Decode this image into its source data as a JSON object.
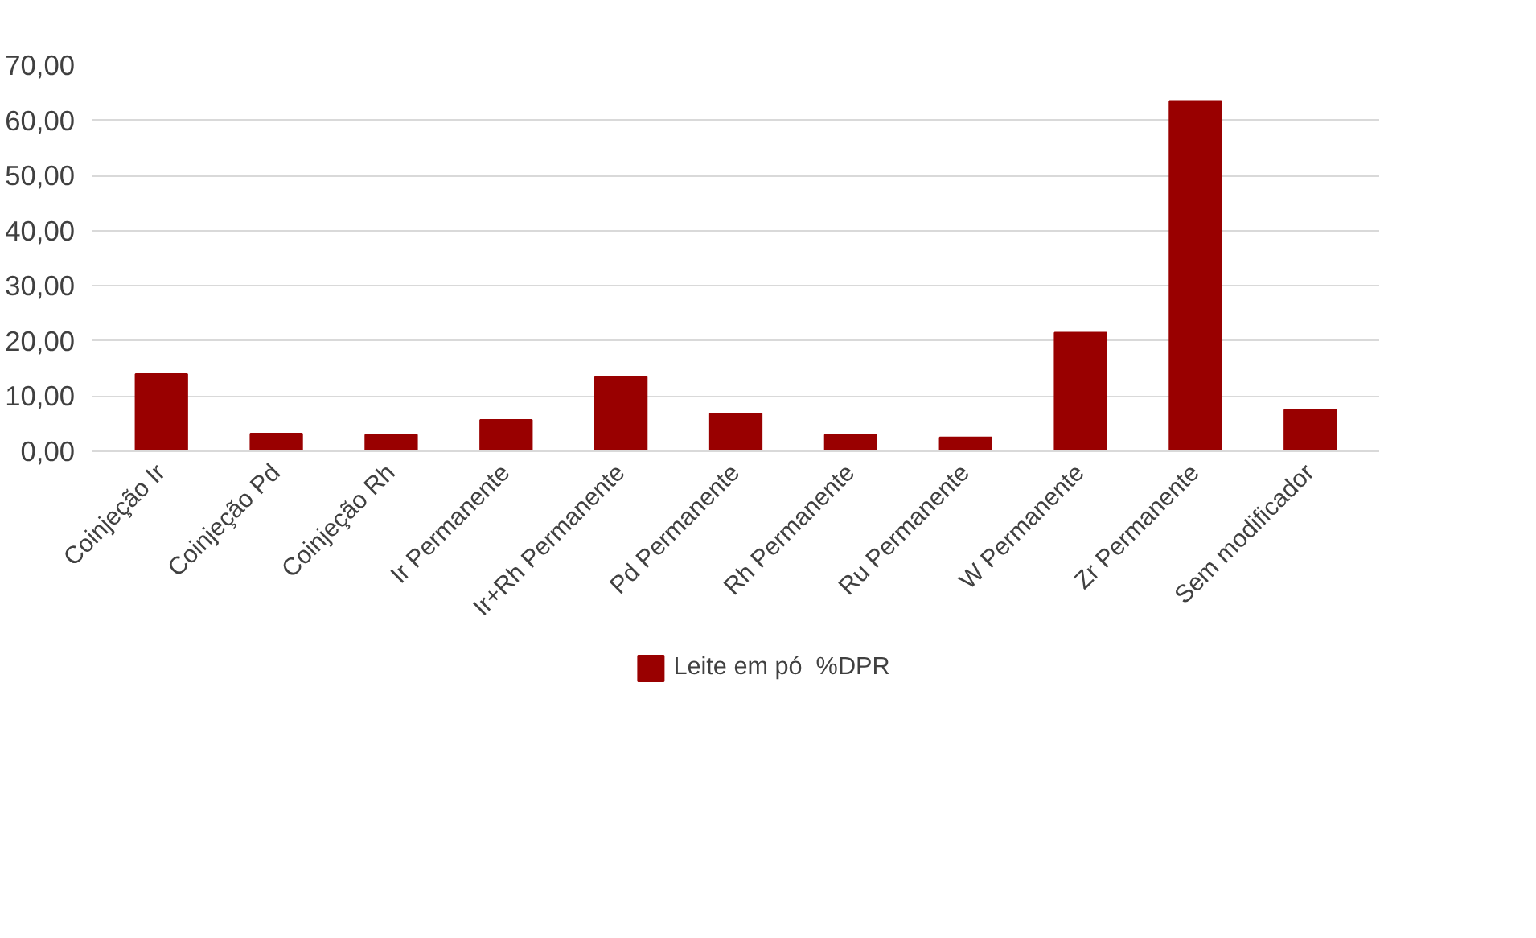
{
  "chart_data": {
    "type": "bar",
    "categories": [
      "Coinjeção Ir",
      "Coinjeção Pd",
      "Coinjeção Rh",
      "Ir Permanente",
      "Ir+Rh Permanente",
      "Pd Permanente",
      "Rh Permanente",
      "Ru Permanente",
      "W Permanente",
      "Zr Permanente",
      "Sem modificador"
    ],
    "series": [
      {
        "name": "Leite em pó  %DPR",
        "color": "#990000",
        "values": [
          14,
          3.2,
          3,
          5.7,
          13.5,
          6.8,
          3,
          2.5,
          21.5,
          63.5,
          7.5
        ]
      }
    ],
    "ylim": [
      0,
      70
    ],
    "yticks": [
      {
        "value": 0,
        "label": "0,00"
      },
      {
        "value": 10,
        "label": "10,00"
      },
      {
        "value": 20,
        "label": "20,00"
      },
      {
        "value": 30,
        "label": "30,00"
      },
      {
        "value": 40,
        "label": "40,00"
      },
      {
        "value": 50,
        "label": "50,00"
      },
      {
        "value": 60,
        "label": "60,00"
      },
      {
        "value": 70,
        "label": "70,00"
      }
    ],
    "grid": "y",
    "legend": "bottom"
  }
}
